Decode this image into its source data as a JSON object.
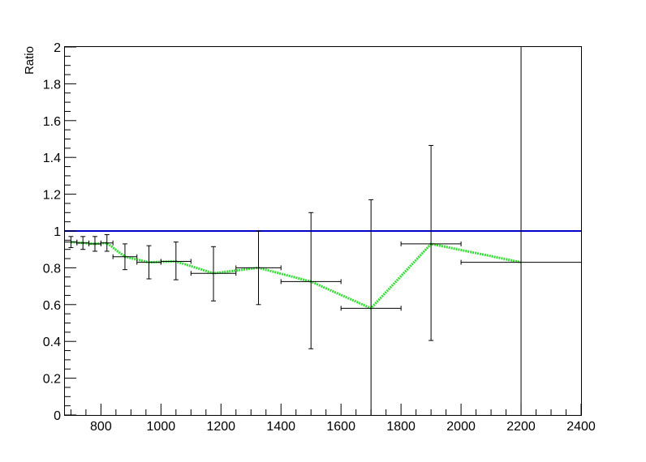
{
  "chart_data": {
    "type": "scatter",
    "title": "",
    "xlabel": "",
    "ylabel": "Ratio",
    "xlim": [
      680,
      2400
    ],
    "ylim": [
      0,
      2
    ],
    "grid": false,
    "legend": "none",
    "x_ticks": [
      800,
      1000,
      1200,
      1400,
      1600,
      1800,
      2000,
      2200,
      2400
    ],
    "x_tick_labels": [
      "800",
      "1000",
      "1200",
      "1400",
      "1600",
      "1800",
      "2000",
      "2200",
      "2400"
    ],
    "y_ticks": [
      0,
      0.2,
      0.4,
      0.6,
      0.8,
      1,
      1.2,
      1.4,
      1.6,
      1.8,
      2
    ],
    "y_tick_labels": [
      "0",
      "0.2",
      "0.4",
      "0.6",
      "0.8",
      "1",
      "1.2",
      "1.4",
      "1.6",
      "1.8",
      "2"
    ],
    "reference_line": {
      "y": 1,
      "color": "#0000cc"
    },
    "fit_color": "#33dd33",
    "marker_color": "#000000",
    "points": [
      {
        "x": 700,
        "xerr": 20,
        "y": 0.94,
        "ylo": 0.91,
        "yhi": 0.97
      },
      {
        "x": 740,
        "xerr": 20,
        "y": 0.935,
        "ylo": 0.9,
        "yhi": 0.97
      },
      {
        "x": 780,
        "xerr": 20,
        "y": 0.93,
        "ylo": 0.89,
        "yhi": 0.97
      },
      {
        "x": 820,
        "xerr": 20,
        "y": 0.935,
        "ylo": 0.89,
        "yhi": 0.98
      },
      {
        "x": 880,
        "xerr": 40,
        "y": 0.86,
        "ylo": 0.79,
        "yhi": 0.93
      },
      {
        "x": 960,
        "xerr": 40,
        "y": 0.83,
        "ylo": 0.74,
        "yhi": 0.92
      },
      {
        "x": 1050,
        "xerr": 50,
        "y": 0.835,
        "ylo": 0.735,
        "yhi": 0.94
      },
      {
        "x": 1175,
        "xerr": 75,
        "y": 0.77,
        "ylo": 0.62,
        "yhi": 0.915
      },
      {
        "x": 1325,
        "xerr": 75,
        "y": 0.8,
        "ylo": 0.6,
        "yhi": 1.0
      },
      {
        "x": 1500,
        "xerr": 100,
        "y": 0.725,
        "ylo": 0.36,
        "yhi": 1.1
      },
      {
        "x": 1700,
        "xerr": 100,
        "y": 0.58,
        "ylo": 0.0,
        "yhi": 1.17
      },
      {
        "x": 1900,
        "xerr": 100,
        "y": 0.93,
        "ylo": 0.405,
        "yhi": 1.465
      },
      {
        "x": 2200,
        "xerr": 200,
        "y": 0.83,
        "ylo": 0.0,
        "yhi": 2.0
      }
    ],
    "fit_curve": {
      "x": [
        700,
        740,
        780,
        820,
        880,
        960,
        1050,
        1175,
        1325,
        1500,
        1700,
        1900,
        2200
      ],
      "y": [
        0.94,
        0.935,
        0.93,
        0.935,
        0.86,
        0.83,
        0.835,
        0.77,
        0.8,
        0.725,
        0.58,
        0.93,
        0.83
      ]
    }
  }
}
